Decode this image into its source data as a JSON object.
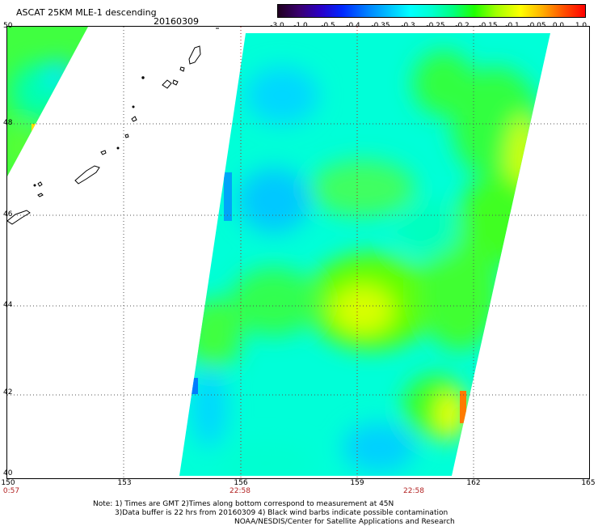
{
  "header": {
    "title": "ASCAT 25KM MLE-1 descending",
    "date": "20160309"
  },
  "colorbar": {
    "ticks": [
      "-3.0",
      "-1.0",
      "-0.5",
      "-0.4",
      "-0.35",
      "-0.3",
      "-0.25",
      "-0.2",
      "-0.15",
      "-0.1",
      "-0.05",
      "0.0",
      "1.0"
    ]
  },
  "axes": {
    "longitude_labels": [
      "150",
      "153",
      "156",
      "159",
      "162",
      "165"
    ],
    "latitude_labels": [
      "50",
      "48",
      "46",
      "44",
      "42",
      "40"
    ],
    "time_labels": [
      "0:57",
      "22:58",
      "22:58"
    ]
  },
  "notes": {
    "line1": "Note: 1) Times are GMT 2)Times along bottom correspond to measurement at 45N",
    "line2": "3)Data buffer is 22 hrs from 20160309 4) Black wind barbs indicate possible contamination",
    "line3": "NOAA/NESDIS/Center for Satellite Applications and Research"
  },
  "colors": {
    "land_outline": "#000000",
    "time_label": "#b22222"
  }
}
